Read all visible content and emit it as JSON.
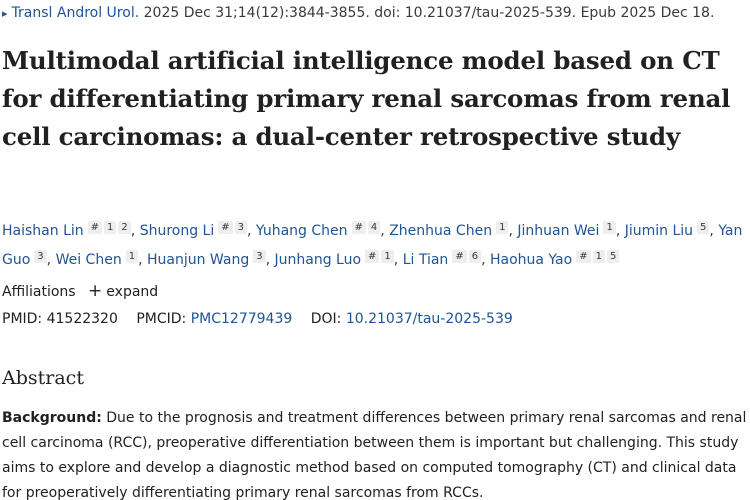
{
  "citation": {
    "journal": "Transl Androl Urol.",
    "details": "2025 Dec 31;14(12):3844-3855. doi: 10.21037/tau-2025-539. Epub 2025 Dec 18."
  },
  "article": {
    "title": "Multimodal artificial intelligence model based on CT for differentiating primary renal sarcomas from renal cell carcinomas: a dual-center retrospective study"
  },
  "authors": [
    {
      "name": "Haishan Lin",
      "marks": [
        "#",
        "1",
        "2"
      ]
    },
    {
      "name": "Shurong Li",
      "marks": [
        "#",
        "3"
      ]
    },
    {
      "name": "Yuhang Chen",
      "marks": [
        "#",
        "4"
      ]
    },
    {
      "name": "Zhenhua Chen",
      "marks": [
        "1"
      ]
    },
    {
      "name": "Jinhuan Wei",
      "marks": [
        "1"
      ]
    },
    {
      "name": "Jiumin Liu",
      "marks": [
        "5"
      ]
    },
    {
      "name": "Yan Guo",
      "marks": [
        "3"
      ]
    },
    {
      "name": "Wei Chen",
      "marks": [
        "1"
      ]
    },
    {
      "name": "Huanjun Wang",
      "marks": [
        "3"
      ]
    },
    {
      "name": "Junhang Luo",
      "marks": [
        "#",
        "1"
      ]
    },
    {
      "name": "Li Tian",
      "marks": [
        "#",
        "6"
      ]
    },
    {
      "name": "Haohua Yao",
      "marks": [
        "#",
        "1",
        "5"
      ]
    }
  ],
  "affiliations": {
    "label": "Affiliations",
    "expand_label": "expand"
  },
  "ids": {
    "pmid_label": "PMID:",
    "pmid": "41522320",
    "pmcid_label": "PMCID:",
    "pmcid": "PMC12779439",
    "doi_label": "DOI:",
    "doi": "10.21037/tau-2025-539"
  },
  "abstract": {
    "heading": "Abstract",
    "background_label": "Background:",
    "background_text": " Due to the prognosis and treatment differences between primary renal sarcomas and renal cell carcinoma (RCC), preoperative differentiation between them is important but challenging. This study aims to explore and develop a diagnostic method based on computed tomography (CT) and clinical data for preoperatively differentiating primary renal sarcomas from RCCs."
  }
}
